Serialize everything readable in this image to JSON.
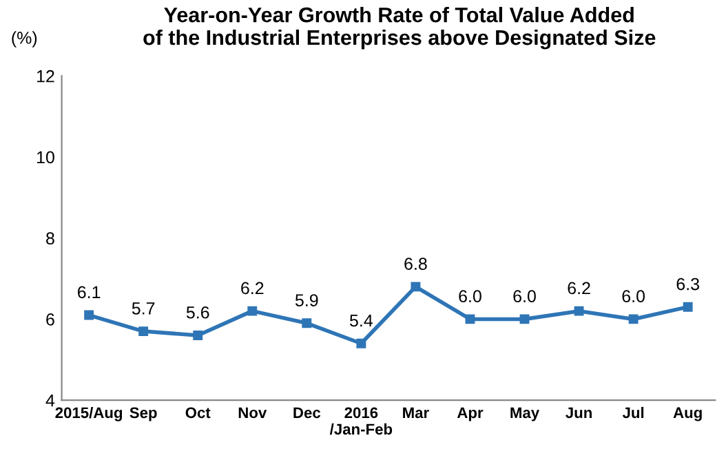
{
  "chart_data": {
    "type": "line",
    "title": "Year-on-Year Growth Rate of Total Value Added\nof the Industrial Enterprises above Designated Size",
    "ylabel": "(%)",
    "categories": [
      "2015/Aug",
      "Sep",
      "Oct",
      "Nov",
      "Dec",
      "2016\n/Jan-Feb",
      "Mar",
      "Apr",
      "May",
      "Jun",
      "Jul",
      "Aug"
    ],
    "series": [
      {
        "color": "#2e75b6",
        "values": [
          6.1,
          5.7,
          5.6,
          6.2,
          5.9,
          5.4,
          6.8,
          6.0,
          6.0,
          6.2,
          6.0,
          6.3
        ],
        "value_labels": [
          "6.1",
          "5.7",
          "5.6",
          "6.2",
          "5.9",
          "5.4",
          "6.8",
          "6.0",
          "6.0",
          "6.2",
          "6.0",
          "6.3"
        ]
      }
    ],
    "ylim": [
      4,
      12
    ],
    "yticks": [
      4,
      6,
      8,
      10,
      12
    ],
    "marker": "square",
    "line_style": "solid",
    "grid": false,
    "legend": false
  }
}
